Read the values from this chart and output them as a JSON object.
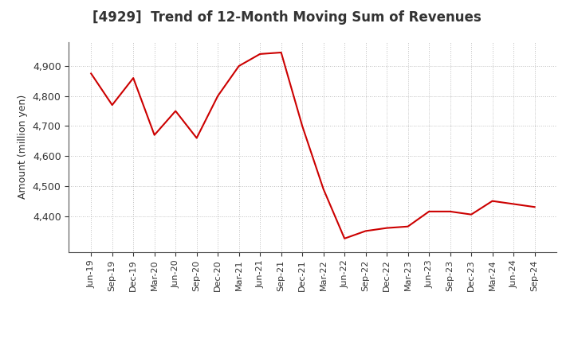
{
  "title": "[4929]  Trend of 12-Month Moving Sum of Revenues",
  "ylabel": "Amount (million yen)",
  "line_color": "#cc0000",
  "background_color": "#ffffff",
  "plot_bg_color": "#ffffff",
  "grid_color": "#999999",
  "title_color": "#333333",
  "ylim": [
    4280,
    4980
  ],
  "yticks": [
    4400,
    4500,
    4600,
    4700,
    4800,
    4900
  ],
  "labels": [
    "Jun-19",
    "Sep-19",
    "Dec-19",
    "Mar-20",
    "Jun-20",
    "Sep-20",
    "Dec-20",
    "Mar-21",
    "Jun-21",
    "Sep-21",
    "Dec-21",
    "Mar-22",
    "Jun-22",
    "Sep-22",
    "Dec-22",
    "Mar-23",
    "Jun-23",
    "Sep-23",
    "Dec-23",
    "Mar-24",
    "Jun-24",
    "Sep-24"
  ],
  "values": [
    4875,
    4770,
    4860,
    4670,
    4750,
    4660,
    4800,
    4900,
    4940,
    4945,
    4700,
    4490,
    4325,
    4350,
    4360,
    4365,
    4415,
    4415,
    4405,
    4450,
    4440,
    4430
  ]
}
